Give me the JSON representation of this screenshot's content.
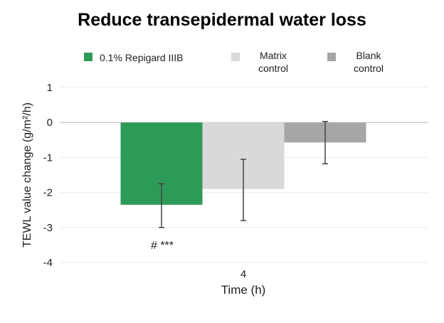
{
  "chart_data": {
    "type": "bar",
    "title": "Reduce transepidermal water loss",
    "xlabel": "Time (h)",
    "ylabel": "TEWL value change (g/m²/h)",
    "ylim": [
      -4,
      1
    ],
    "yticks": [
      "1",
      "0",
      "-1",
      "-2",
      "-3",
      "-4"
    ],
    "categories": [
      "4"
    ],
    "grid": true,
    "legend_position": "top",
    "series": [
      {
        "name": "0.1% Repigard IIIB",
        "values": [
          -2.35
        ],
        "error_low": [
          -3.0
        ],
        "error_high": [
          -1.75
        ],
        "color": "#2e9a57"
      },
      {
        "name": "Matrix\ncontrol",
        "values": [
          -1.9
        ],
        "error_low": [
          -2.8
        ],
        "error_high": [
          -1.05
        ],
        "color": "#d9d9d9"
      },
      {
        "name": "Blank\ncontrol",
        "values": [
          -0.57
        ],
        "error_low": [
          -1.18
        ],
        "error_high": [
          0.03
        ],
        "color": "#a6a6a6"
      }
    ],
    "annotations": [
      "# ***"
    ]
  }
}
